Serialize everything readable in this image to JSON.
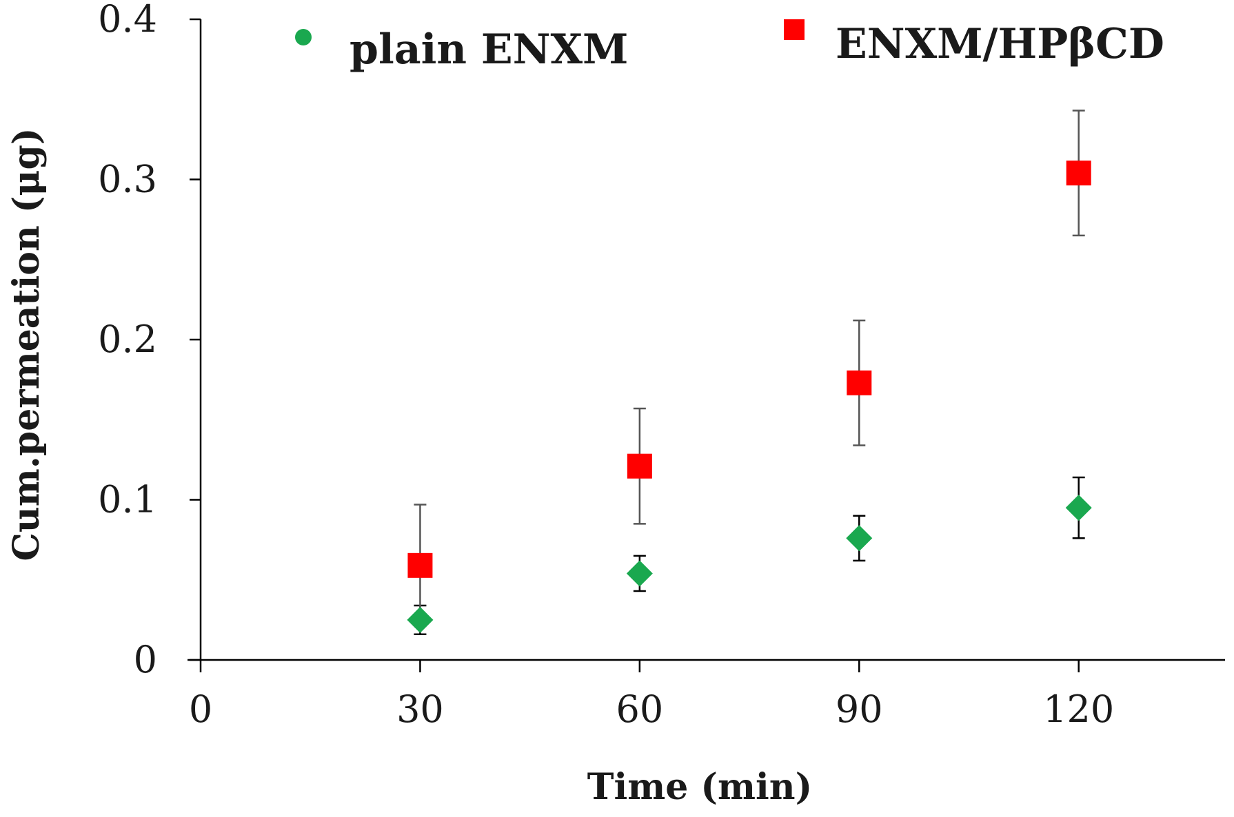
{
  "chart_data": {
    "type": "scatter",
    "title": "",
    "xlabel": "Time (min)",
    "ylabel": "Cum.permeation (μg)",
    "xlim": [
      0,
      140
    ],
    "ylim": [
      0,
      0.4
    ],
    "xticks": [
      0,
      30,
      60,
      90,
      120
    ],
    "yticks": [
      0,
      0.1,
      0.2,
      0.3,
      0.4
    ],
    "xtick_labels": [
      "0",
      "30",
      "60",
      "90",
      "120"
    ],
    "ytick_labels": [
      "0",
      "0.1",
      "0.2",
      "0.3",
      "0.4"
    ],
    "grid": false,
    "legend_position": "top",
    "series": [
      {
        "name": "plain ENXM",
        "marker": "diamond",
        "legend_marker": "circle",
        "color": "#1aa84f",
        "error_color": "#000000",
        "x": [
          30,
          60,
          90,
          120
        ],
        "y": [
          0.025,
          0.054,
          0.076,
          0.095
        ],
        "error": [
          0.009,
          0.011,
          0.014,
          0.019
        ]
      },
      {
        "name": "ENXM/HPβCD",
        "marker": "square",
        "legend_marker": "square",
        "color": "#ff0000",
        "error_color": "#555555",
        "x": [
          30,
          60,
          90,
          120
        ],
        "y": [
          0.059,
          0.121,
          0.173,
          0.304
        ],
        "error": [
          0.038,
          0.036,
          0.039,
          0.039
        ]
      }
    ]
  }
}
